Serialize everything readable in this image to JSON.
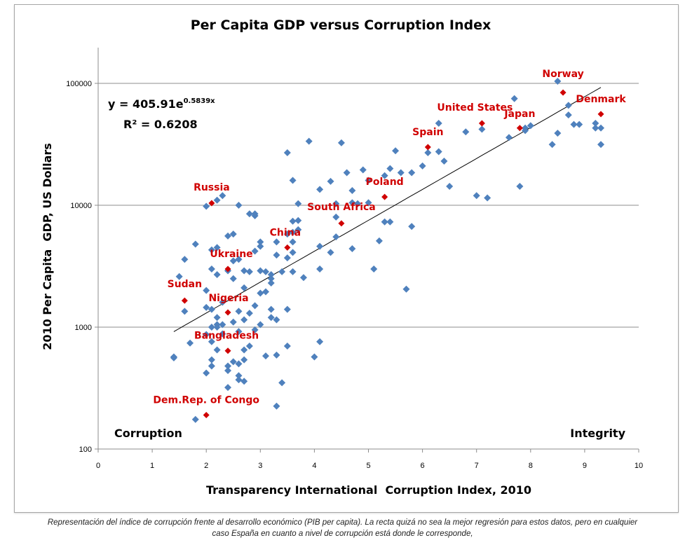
{
  "chart_data": {
    "type": "scatter",
    "title": "Per Capita GDP versus Corruption Index",
    "xlabel": "Transparency International  Corruption Index, 2010",
    "ylabel": "2010 Per Capita  GDP, US Dollars",
    "xlim": [
      0,
      10
    ],
    "ylim": [
      100,
      200000
    ],
    "yscale": "log",
    "grid": "horizontal",
    "legend": "none",
    "x_ticks": [
      "0",
      "1",
      "2",
      "3",
      "4",
      "5",
      "6",
      "7",
      "8",
      "9",
      "10"
    ],
    "y_ticks": [
      "100",
      "1000",
      "10000",
      "100000"
    ],
    "corner_labels": {
      "left": "Corruption",
      "right": "Integrity"
    },
    "trendline": {
      "type": "exponential",
      "a": 405.91,
      "b": 0.5839,
      "x_range": [
        1.4,
        9.3
      ],
      "equation_main": "y = 405.91e",
      "equation_exp": "0.5839x",
      "r2_label": "R² = 0.6208"
    },
    "colors": {
      "points": "#4f81bd",
      "highlight": "#d00000",
      "trendline": "#000000",
      "grid": "#8c8c8c"
    },
    "highlighted": [
      {
        "name": "Norway",
        "x": 8.6,
        "y": 84000
      },
      {
        "name": "Denmark",
        "x": 9.3,
        "y": 56000
      },
      {
        "name": "United States",
        "x": 7.1,
        "y": 47000
      },
      {
        "name": "Japan",
        "x": 7.8,
        "y": 43000
      },
      {
        "name": "Spain",
        "x": 6.1,
        "y": 30000
      },
      {
        "name": "Poland",
        "x": 5.3,
        "y": 11700
      },
      {
        "name": "South Africa",
        "x": 4.5,
        "y": 7100
      },
      {
        "name": "China",
        "x": 3.5,
        "y": 4500
      },
      {
        "name": "Russia",
        "x": 2.1,
        "y": 10400
      },
      {
        "name": "Ukraine",
        "x": 2.4,
        "y": 3000
      },
      {
        "name": "Sudan",
        "x": 1.6,
        "y": 1650
      },
      {
        "name": "Nigeria",
        "x": 2.4,
        "y": 1320
      },
      {
        "name": "Bangladesh",
        "x": 2.4,
        "y": 640
      },
      {
        "name": "Dem.Rep. of Congo",
        "x": 2.0,
        "y": 190
      }
    ],
    "points": [
      [
        8.5,
        104000
      ],
      [
        7.7,
        75000
      ],
      [
        8.7,
        66000
      ],
      [
        9.3,
        43000
      ],
      [
        9.2,
        47000
      ],
      [
        9.2,
        43000
      ],
      [
        9.3,
        31500
      ],
      [
        8.4,
        31500
      ],
      [
        8.5,
        39000
      ],
      [
        8.8,
        46000
      ],
      [
        8.9,
        46000
      ],
      [
        8.7,
        55000
      ],
      [
        8.0,
        45000
      ],
      [
        7.9,
        43000
      ],
      [
        7.9,
        41000
      ],
      [
        7.6,
        36000
      ],
      [
        7.8,
        14300
      ],
      [
        6.3,
        47000
      ],
      [
        6.8,
        40000
      ],
      [
        7.1,
        42000
      ],
      [
        7.0,
        12000
      ],
      [
        7.2,
        11500
      ],
      [
        6.5,
        14300
      ],
      [
        6.1,
        27000
      ],
      [
        6.3,
        27500
      ],
      [
        6.4,
        23000
      ],
      [
        6.0,
        21000
      ],
      [
        5.8,
        18500
      ],
      [
        5.6,
        18500
      ],
      [
        5.5,
        28000
      ],
      [
        5.4,
        20000
      ],
      [
        5.3,
        17500
      ],
      [
        4.9,
        19500
      ],
      [
        5.0,
        16000
      ],
      [
        4.6,
        18500
      ],
      [
        4.7,
        13200
      ],
      [
        4.3,
        15700
      ],
      [
        4.1,
        13500
      ],
      [
        4.5,
        32500
      ],
      [
        3.9,
        33500
      ],
      [
        3.5,
        27000
      ],
      [
        3.6,
        16000
      ],
      [
        4.7,
        10500
      ],
      [
        5.0,
        10500
      ],
      [
        4.8,
        10300
      ],
      [
        4.4,
        10300
      ],
      [
        4.4,
        8000
      ],
      [
        4.1,
        4600
      ],
      [
        4.3,
        4100
      ],
      [
        4.7,
        4400
      ],
      [
        4.4,
        5500
      ],
      [
        5.3,
        7300
      ],
      [
        5.4,
        7300
      ],
      [
        5.8,
        6700
      ],
      [
        5.2,
        5100
      ],
      [
        5.1,
        3000
      ],
      [
        5.7,
        2050
      ],
      [
        4.1,
        3000
      ],
      [
        4.0,
        570
      ],
      [
        4.1,
        760
      ],
      [
        3.5,
        700
      ],
      [
        3.4,
        350
      ],
      [
        3.3,
        225
      ],
      [
        3.3,
        590
      ],
      [
        3.1,
        580
      ],
      [
        3.7,
        10300
      ],
      [
        3.7,
        7500
      ],
      [
        3.6,
        7400
      ],
      [
        3.7,
        6300
      ],
      [
        3.6,
        6000
      ],
      [
        3.5,
        5800
      ],
      [
        3.6,
        5000
      ],
      [
        3.6,
        4100
      ],
      [
        3.5,
        3700
      ],
      [
        3.4,
        2850
      ],
      [
        3.6,
        2850
      ],
      [
        3.8,
        2550
      ],
      [
        3.3,
        5000
      ],
      [
        3.3,
        3900
      ],
      [
        3.2,
        2700
      ],
      [
        3.1,
        2850
      ],
      [
        3.0,
        2900
      ],
      [
        3.2,
        2500
      ],
      [
        3.0,
        5000
      ],
      [
        3.0,
        4600
      ],
      [
        2.9,
        4200
      ],
      [
        3.0,
        1900
      ],
      [
        3.2,
        2300
      ],
      [
        2.9,
        8500
      ],
      [
        2.8,
        8500
      ],
      [
        2.9,
        8200
      ],
      [
        2.6,
        10000
      ],
      [
        2.2,
        11000
      ],
      [
        2.3,
        12000
      ],
      [
        2.0,
        9800
      ],
      [
        2.5,
        5800
      ],
      [
        2.4,
        5600
      ],
      [
        2.2,
        4500
      ],
      [
        2.1,
        4300
      ],
      [
        2.6,
        3600
      ],
      [
        2.5,
        3500
      ],
      [
        2.7,
        2900
      ],
      [
        2.8,
        2850
      ],
      [
        2.4,
        2900
      ],
      [
        2.1,
        3000
      ],
      [
        2.2,
        2700
      ],
      [
        2.5,
        2500
      ],
      [
        2.7,
        2100
      ],
      [
        1.6,
        3600
      ],
      [
        1.5,
        2600
      ],
      [
        1.6,
        1350
      ],
      [
        1.8,
        4800
      ],
      [
        2.0,
        2000
      ],
      [
        2.0,
        1450
      ],
      [
        2.3,
        1600
      ],
      [
        2.1,
        1400
      ],
      [
        2.2,
        1200
      ],
      [
        2.6,
        1350
      ],
      [
        2.7,
        1150
      ],
      [
        2.8,
        1300
      ],
      [
        2.9,
        1500
      ],
      [
        3.2,
        1400
      ],
      [
        3.3,
        1150
      ],
      [
        3.2,
        1200
      ],
      [
        2.2,
        1000
      ],
      [
        2.2,
        1050
      ],
      [
        2.3,
        1050
      ],
      [
        2.5,
        1100
      ],
      [
        2.1,
        1000
      ],
      [
        2.0,
        870
      ],
      [
        2.1,
        760
      ],
      [
        1.7,
        740
      ],
      [
        1.4,
        570
      ],
      [
        1.4,
        560
      ],
      [
        2.3,
        880
      ],
      [
        2.6,
        920
      ],
      [
        2.9,
        950
      ],
      [
        3.0,
        1050
      ],
      [
        2.1,
        540
      ],
      [
        2.1,
        480
      ],
      [
        2.2,
        650
      ],
      [
        2.4,
        480
      ],
      [
        2.4,
        440
      ],
      [
        2.5,
        520
      ],
      [
        2.6,
        500
      ],
      [
        2.7,
        540
      ],
      [
        2.7,
        650
      ],
      [
        2.8,
        700
      ],
      [
        2.6,
        400
      ],
      [
        2.6,
        370
      ],
      [
        2.7,
        360
      ],
      [
        2.4,
        320
      ],
      [
        2.0,
        420
      ],
      [
        1.8,
        175
      ],
      [
        3.1,
        1950
      ],
      [
        3.5,
        1400
      ]
    ]
  },
  "caption": {
    "line1": "Representación del índice de corrupción frente al desarrollo económico (PIB per capita). La recta quizá no sea la mejor regresión para estos datos, pero en cualquier",
    "line2": "caso España en cuanto a nivel de corrupción está donde le corresponde,"
  }
}
